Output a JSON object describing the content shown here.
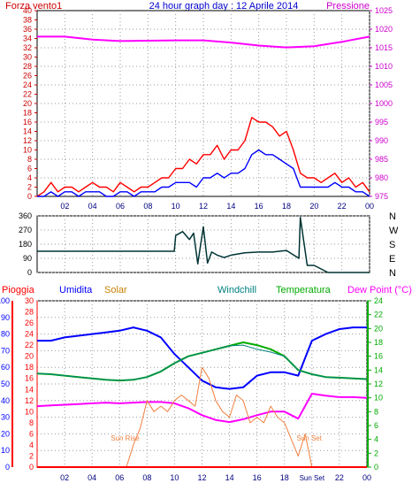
{
  "colors": {
    "background": "#ffffff",
    "plot_frame": "#000000",
    "grid": "#9a9a9a",
    "wind_gust": "#ff0000",
    "wind_avg": "#0000ff",
    "pressure": "#ff00ff",
    "direction": "#003333",
    "rain": "#ff0000",
    "humidity": "#0000ff",
    "solar": "#f08040",
    "windchill": "#008080",
    "temperature": "#00aa00",
    "dewpoint": "#ff00ff",
    "left_axis_wind": "#cc0000",
    "right_axis_pressure": "#cc00cc",
    "axis_rain": "#ff0000",
    "axis_humidity": "#0000ff",
    "axis_solar": "#c88000",
    "axis_temperature": "#00aa00"
  },
  "header": {
    "left_label": "Forza vento1",
    "title": "24 hour graph day : 12 Aprile 2014",
    "right_label": "Pressione"
  },
  "labels2": {
    "rain": "Pioggia",
    "humidity": "Umidita",
    "solar": "Solar",
    "windchill": "Windchill",
    "temperature": "Temperatura",
    "dewpoint": "Dew Point (°C)"
  },
  "chart_data": [
    {
      "type": "line",
      "name": "wind-and-pressure",
      "x_ticks": [
        "02",
        "04",
        "06",
        "08",
        "10",
        "12",
        "14",
        "16",
        "18",
        "20",
        "22",
        "00"
      ],
      "x_hours": [
        2,
        4,
        6,
        8,
        10,
        12,
        14,
        16,
        18,
        20,
        22,
        24
      ],
      "x_range": [
        0,
        24
      ],
      "left_axis": {
        "label": "Forza vento1",
        "ticks": [
          0,
          2,
          4,
          6,
          8,
          10,
          12,
          14,
          16,
          18,
          20,
          22,
          24,
          26,
          28,
          30,
          32,
          34,
          36,
          38,
          40
        ],
        "range": [
          0,
          40
        ]
      },
      "right_axis": {
        "label": "Pressione",
        "ticks": [
          975,
          980,
          985,
          990,
          995,
          1000,
          1005,
          1010,
          1015,
          1020,
          1025
        ],
        "range": [
          975,
          1025
        ]
      },
      "series": [
        {
          "name": "wind-gust",
          "axis": "left",
          "x": [
            0,
            0.5,
            1,
            1.5,
            2,
            2.5,
            3,
            3.5,
            4,
            4.5,
            5,
            5.5,
            6,
            6.5,
            7,
            7.5,
            8,
            8.5,
            9,
            9.5,
            10,
            10.5,
            11,
            11.5,
            12,
            12.5,
            13,
            13.5,
            14,
            14.5,
            15,
            15.5,
            16,
            16.5,
            17,
            17.5,
            18,
            18.5,
            19,
            19.5,
            20,
            20.5,
            21,
            21.5,
            22,
            22.5,
            23,
            23.5,
            24
          ],
          "y": [
            0,
            1,
            3,
            1,
            2,
            2,
            1,
            2,
            3,
            2,
            2,
            1,
            3,
            2,
            1,
            2,
            2,
            3,
            4,
            4,
            6,
            6,
            8,
            7,
            9,
            9,
            11,
            8,
            10,
            10,
            12,
            17,
            16,
            16,
            15,
            13,
            14,
            10,
            5,
            4,
            4,
            3,
            4,
            5,
            3,
            4,
            2,
            3,
            1
          ]
        },
        {
          "name": "wind-avg",
          "axis": "left",
          "x": [
            0,
            0.5,
            1,
            1.5,
            2,
            2.5,
            3,
            3.5,
            4,
            4.5,
            5,
            5.5,
            6,
            6.5,
            7,
            7.5,
            8,
            8.5,
            9,
            9.5,
            10,
            10.5,
            11,
            11.5,
            12,
            12.5,
            13,
            13.5,
            14,
            14.5,
            15,
            15.5,
            16,
            16.5,
            17,
            17.5,
            18,
            18.5,
            19,
            19.5,
            20,
            20.5,
            21,
            21.5,
            22,
            22.5,
            23,
            23.5,
            24
          ],
          "y": [
            0,
            0,
            1,
            0,
            1,
            1,
            0,
            1,
            1,
            1,
            0,
            0,
            1,
            1,
            0,
            1,
            1,
            1,
            2,
            2,
            3,
            3,
            3,
            2,
            4,
            4,
            5,
            4,
            5,
            5,
            6,
            9,
            10,
            9,
            9,
            8,
            7,
            6,
            2,
            2,
            2,
            2,
            2,
            3,
            2,
            2,
            1,
            1,
            0
          ]
        },
        {
          "name": "pressure",
          "axis": "right",
          "x": [
            0,
            2,
            4,
            6,
            8,
            10,
            12,
            14,
            16,
            18,
            20,
            22,
            24
          ],
          "y": [
            1018,
            1018,
            1017.2,
            1016.8,
            1016.9,
            1017,
            1017,
            1016.4,
            1015.6,
            1015.1,
            1015.4,
            1016.6,
            1018
          ]
        }
      ]
    },
    {
      "type": "line",
      "name": "wind-direction",
      "x_range": [
        0,
        24
      ],
      "left_axis": {
        "ticks": [
          0,
          90,
          180,
          270,
          360
        ],
        "range": [
          0,
          360
        ]
      },
      "right_axis": {
        "ticks": [
          "N",
          "W",
          "S",
          "E",
          "N"
        ]
      },
      "series": [
        {
          "name": "direction",
          "x": [
            0,
            6,
            9.9,
            10,
            10.5,
            11,
            11.3,
            11.6,
            12,
            12.3,
            12.6,
            13,
            13.5,
            14,
            15,
            16,
            17,
            18,
            18.9,
            19,
            19.5,
            20,
            21,
            22,
            24
          ],
          "y": [
            135,
            135,
            135,
            235,
            260,
            210,
            250,
            55,
            290,
            60,
            130,
            110,
            95,
            110,
            125,
            130,
            130,
            140,
            90,
            350,
            45,
            45,
            0,
            0,
            0
          ]
        }
      ]
    },
    {
      "type": "line",
      "name": "rain-humidity-solar-temperature",
      "x_range": [
        0,
        24
      ],
      "axis_rain": {
        "ticks": [
          0,
          10,
          20,
          30,
          40,
          50,
          60,
          70,
          80,
          90,
          100
        ],
        "range": [
          0,
          100
        ]
      },
      "axis_humidity": {
        "ticks": [
          0,
          2,
          4,
          6,
          8,
          10,
          12,
          14,
          16,
          18,
          20,
          22,
          24,
          26,
          28,
          30
        ],
        "range": [
          0,
          30
        ]
      },
      "axis_temperature": {
        "ticks": [
          0,
          2,
          4,
          6,
          8,
          10,
          12,
          14,
          16,
          18,
          20,
          22,
          24
        ],
        "range": [
          0,
          24
        ]
      },
      "bottom_ticks": [
        "02",
        "04",
        "06",
        "08",
        "10",
        "12",
        "14",
        "16",
        "18",
        "Sun Set",
        "22",
        "00"
      ],
      "annotations": [
        "Sun Rise",
        "Sun Set"
      ],
      "series": [
        {
          "name": "humidity",
          "axis": "rain",
          "x": [
            0,
            1,
            2,
            3,
            4,
            5,
            6,
            7,
            8,
            9,
            10,
            11,
            12,
            13,
            14,
            15,
            16,
            17,
            18,
            19,
            20,
            21,
            22,
            23,
            24
          ],
          "y": [
            76,
            76,
            78,
            79,
            80,
            81,
            82,
            84,
            82,
            78,
            68,
            60,
            52,
            48,
            47,
            48,
            55,
            57,
            57,
            55,
            76,
            80,
            83,
            84,
            84
          ]
        },
        {
          "name": "temperature",
          "axis": "temperature",
          "x": [
            0,
            1,
            2,
            3,
            4,
            5,
            6,
            7,
            8,
            9,
            10,
            11,
            12,
            13,
            14,
            15,
            16,
            17,
            18,
            19,
            20,
            21,
            22,
            23,
            24
          ],
          "y": [
            13.5,
            13.4,
            13.2,
            13,
            12.8,
            12.6,
            12.5,
            12.6,
            13,
            13.8,
            15,
            16,
            16.5,
            17,
            17.5,
            18,
            17.6,
            17,
            16,
            14,
            13.4,
            13,
            12.9,
            12.8,
            12.7
          ]
        },
        {
          "name": "dewpoint",
          "axis": "temperature",
          "x": [
            0,
            1,
            2,
            3,
            4,
            5,
            6,
            7,
            8,
            9,
            10,
            11,
            12,
            13,
            14,
            15,
            16,
            17,
            18,
            19,
            20,
            21,
            22,
            23,
            24
          ],
          "y": [
            8.8,
            8.9,
            9,
            9.1,
            9.2,
            9.3,
            9.2,
            9.3,
            9.4,
            9.4,
            9.2,
            8.5,
            7.5,
            6.8,
            6.5,
            6.9,
            7.5,
            8,
            8,
            7,
            10.6,
            10.3,
            10.1,
            10.1,
            10
          ]
        },
        {
          "name": "windchill",
          "axis": "temperature",
          "x": [
            0,
            1,
            2,
            3,
            4,
            5,
            6,
            7,
            8,
            9,
            10,
            11,
            12,
            13,
            14,
            15,
            16,
            17,
            18,
            19,
            20,
            21,
            22,
            23,
            24
          ],
          "y": [
            13.5,
            13.4,
            13.2,
            13,
            12.8,
            12.6,
            12.5,
            12.6,
            13,
            13.8,
            15,
            16,
            16.5,
            17,
            17.5,
            17.6,
            17,
            16.6,
            16,
            14,
            13.4,
            13,
            12.9,
            12.8,
            12.7
          ]
        },
        {
          "name": "solar",
          "axis": "humidity",
          "x": [
            0,
            6.5,
            7,
            7.5,
            8,
            8.5,
            9,
            9.5,
            10,
            10.5,
            11,
            11.5,
            12,
            12.5,
            13,
            13.5,
            14,
            14.5,
            15,
            15.5,
            16,
            16.5,
            17,
            17.5,
            18,
            18.5,
            19,
            19.5,
            20,
            24
          ],
          "y": [
            0,
            0,
            4,
            7,
            12,
            10,
            11,
            10,
            12,
            13,
            12,
            11,
            18,
            16,
            12,
            10,
            9,
            13,
            12,
            8,
            9,
            8,
            11,
            9,
            8,
            5,
            2,
            6,
            0,
            0
          ]
        },
        {
          "name": "rain",
          "axis": "rain",
          "x": [
            0,
            24
          ],
          "y": [
            0,
            0
          ]
        }
      ]
    }
  ]
}
